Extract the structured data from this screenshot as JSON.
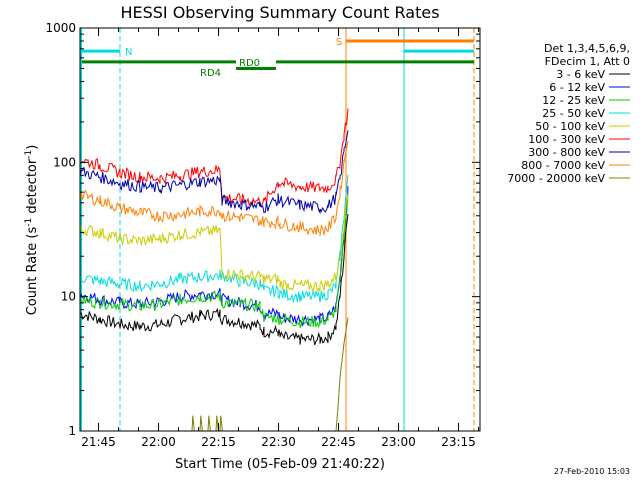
{
  "chart_data": {
    "type": "line",
    "title": "HESSI Observing Summary Count Rates",
    "xlabel": "Start Time (05-Feb-09 21:40:22)",
    "ylabel_main": "Count Rate (s",
    "ylabel_sup1": "-1",
    "ylabel_mid": " detector",
    "ylabel_sup2": "-1",
    "ylabel_end": ")",
    "x_unit": "minutes after 21:40:22",
    "xlim": [
      0,
      100
    ],
    "ylim": [
      1,
      1000
    ],
    "yscale": "log",
    "x_ticks": [
      {
        "value": 4.63,
        "label": "21:45"
      },
      {
        "value": 19.63,
        "label": "22:00"
      },
      {
        "value": 34.63,
        "label": "22:15"
      },
      {
        "value": 49.63,
        "label": "22:30"
      },
      {
        "value": 64.63,
        "label": "22:45"
      },
      {
        "value": 79.63,
        "label": "23:00"
      },
      {
        "value": 94.63,
        "label": "23:15"
      }
    ],
    "y_ticks": [
      {
        "value": 1,
        "label": "1"
      },
      {
        "value": 10,
        "label": "10"
      },
      {
        "value": 100,
        "label": "100"
      },
      {
        "value": 1000,
        "label": "1000"
      }
    ],
    "legend_header": [
      "Det 1,3,4,5,6,9,",
      "FDecim 1, Att 0"
    ],
    "legend_position": "right",
    "series": [
      {
        "name": "3 - 6 keV",
        "color": "#000000",
        "points": [
          [
            0,
            7.5
          ],
          [
            5,
            6.8
          ],
          [
            10,
            6.2
          ],
          [
            15,
            6.0
          ],
          [
            20,
            6.2
          ],
          [
            25,
            6.8
          ],
          [
            30,
            7.2
          ],
          [
            35,
            7.5
          ],
          [
            35.5,
            6.8
          ],
          [
            40,
            6.5
          ],
          [
            45,
            6.0
          ],
          [
            46,
            5.5
          ],
          [
            49.5,
            5.5
          ],
          [
            50,
            5.0
          ],
          [
            55,
            4.8
          ],
          [
            60,
            4.8
          ],
          [
            62,
            5.0
          ],
          [
            64,
            6.0
          ],
          [
            65,
            10.0
          ],
          [
            66,
            20.0
          ],
          [
            67,
            45.0
          ]
        ]
      },
      {
        "name": "6 - 12 keV",
        "color": "#0000ff",
        "points": [
          [
            0,
            10.5
          ],
          [
            5,
            9.5
          ],
          [
            10,
            9.0
          ],
          [
            15,
            8.8
          ],
          [
            20,
            9.2
          ],
          [
            25,
            10.0
          ],
          [
            30,
            10.5
          ],
          [
            35,
            10.5
          ],
          [
            35.5,
            9.5
          ],
          [
            40,
            9.0
          ],
          [
            45,
            8.5
          ],
          [
            46,
            7.5
          ],
          [
            49.5,
            7.5
          ],
          [
            50,
            7.0
          ],
          [
            55,
            6.8
          ],
          [
            60,
            6.8
          ],
          [
            62,
            7.0
          ],
          [
            64,
            8.5
          ],
          [
            65,
            14.0
          ],
          [
            66,
            30.0
          ],
          [
            67,
            60.0
          ]
        ]
      },
      {
        "name": "12 - 25 keV",
        "color": "#00cc00",
        "points": [
          [
            0,
            9.5
          ],
          [
            5,
            9.0
          ],
          [
            10,
            8.8
          ],
          [
            15,
            8.5
          ],
          [
            20,
            8.8
          ],
          [
            25,
            9.5
          ],
          [
            30,
            10.0
          ],
          [
            35,
            10.0
          ],
          [
            35.5,
            9.0
          ],
          [
            40,
            8.8
          ],
          [
            45,
            8.5
          ],
          [
            46,
            7.0
          ],
          [
            49.5,
            7.0
          ],
          [
            50,
            6.8
          ],
          [
            55,
            6.5
          ],
          [
            60,
            6.5
          ],
          [
            62,
            6.8
          ],
          [
            64,
            8.0
          ],
          [
            65,
            13.0
          ],
          [
            66,
            28.0
          ],
          [
            67,
            55.0
          ]
        ]
      },
      {
        "name": "25 - 50 keV",
        "color": "#00dddd",
        "points": [
          [
            0,
            14.0
          ],
          [
            5,
            13.0
          ],
          [
            10,
            12.5
          ],
          [
            15,
            12.0
          ],
          [
            20,
            12.5
          ],
          [
            25,
            13.5
          ],
          [
            30,
            14.0
          ],
          [
            35,
            14.5
          ],
          [
            35.5,
            14.5
          ],
          [
            40,
            13.0
          ],
          [
            45,
            12.5
          ],
          [
            46,
            11.0
          ],
          [
            49.5,
            11.0
          ],
          [
            50,
            10.5
          ],
          [
            55,
            10.0
          ],
          [
            60,
            10.0
          ],
          [
            62,
            10.5
          ],
          [
            64,
            12.0
          ],
          [
            65,
            20.0
          ],
          [
            66,
            40.0
          ],
          [
            67,
            80.0
          ]
        ]
      },
      {
        "name": "50 - 100 keV",
        "color": "#cccc00",
        "points": [
          [
            0,
            32.0
          ],
          [
            5,
            30.0
          ],
          [
            10,
            27.0
          ],
          [
            15,
            26.0
          ],
          [
            20,
            27.0
          ],
          [
            25,
            29.0
          ],
          [
            30,
            30.0
          ],
          [
            35,
            31.0
          ],
          [
            35.5,
            15.0
          ],
          [
            40,
            14.5
          ],
          [
            45,
            14.0
          ],
          [
            46,
            13.5
          ],
          [
            49.5,
            13.5
          ],
          [
            50,
            12.5
          ],
          [
            55,
            12.0
          ],
          [
            60,
            12.0
          ],
          [
            62,
            12.5
          ],
          [
            64,
            14.0
          ],
          [
            65,
            20.0
          ],
          [
            66,
            35.0
          ],
          [
            67,
            60.0
          ]
        ]
      },
      {
        "name": "100 - 300 keV",
        "color": "#ff0000",
        "points": [
          [
            0,
            105.0
          ],
          [
            5,
            95.0
          ],
          [
            10,
            84.0
          ],
          [
            15,
            78.0
          ],
          [
            20,
            76.0
          ],
          [
            25,
            80.0
          ],
          [
            30,
            85.0
          ],
          [
            35,
            88.0
          ],
          [
            35.5,
            55.0
          ],
          [
            40,
            53.0
          ],
          [
            45,
            51.0
          ],
          [
            46,
            50.0
          ],
          [
            49.5,
            70.0
          ],
          [
            50,
            70.0
          ],
          [
            55,
            66.0
          ],
          [
            60,
            64.0
          ],
          [
            62,
            65.0
          ],
          [
            64,
            75.0
          ],
          [
            65,
            100.0
          ],
          [
            66,
            160.0
          ],
          [
            67,
            240.0
          ]
        ]
      },
      {
        "name": "300 - 800 keV",
        "color": "#0000aa",
        "points": [
          [
            0,
            86.0
          ],
          [
            5,
            78.0
          ],
          [
            10,
            70.0
          ],
          [
            15,
            66.0
          ],
          [
            20,
            64.0
          ],
          [
            25,
            68.0
          ],
          [
            30,
            72.0
          ],
          [
            35,
            74.0
          ],
          [
            35.5,
            52.0
          ],
          [
            40,
            49.0
          ],
          [
            45,
            47.0
          ],
          [
            46,
            46.0
          ],
          [
            49.5,
            53.0
          ],
          [
            50,
            52.0
          ],
          [
            55,
            48.0
          ],
          [
            60,
            46.0
          ],
          [
            62,
            47.0
          ],
          [
            64,
            55.0
          ],
          [
            65,
            75.0
          ],
          [
            66,
            120.0
          ],
          [
            67,
            180.0
          ]
        ]
      },
      {
        "name": "800 - 7000 keV",
        "color": "#ff8000",
        "points": [
          [
            0,
            57.0
          ],
          [
            5,
            52.0
          ],
          [
            10,
            46.0
          ],
          [
            15,
            42.0
          ],
          [
            20,
            40.0
          ],
          [
            25,
            41.0
          ],
          [
            30,
            43.0
          ],
          [
            35,
            44.0
          ],
          [
            35.5,
            40.0
          ],
          [
            40,
            39.0
          ],
          [
            45,
            37.0
          ],
          [
            46,
            36.0
          ],
          [
            49.5,
            36.0
          ],
          [
            50,
            35.0
          ],
          [
            55,
            33.0
          ],
          [
            60,
            31.0
          ],
          [
            62,
            32.0
          ],
          [
            64,
            40.0
          ],
          [
            65,
            60.0
          ],
          [
            66,
            100.0
          ],
          [
            67,
            160.0
          ]
        ]
      },
      {
        "name": "7000 - 20000 keV",
        "color": "#808000",
        "points": [
          [
            28,
            1.0
          ],
          [
            28.2,
            1.3
          ],
          [
            28.6,
            1.0
          ],
          [
            30,
            1.0
          ],
          [
            30.2,
            1.3
          ],
          [
            30.6,
            1.0
          ],
          [
            32,
            1.0
          ],
          [
            32.2,
            1.3
          ],
          [
            32.6,
            1.0
          ],
          [
            34,
            1.0
          ],
          [
            34.2,
            1.3
          ],
          [
            34.6,
            1.0
          ],
          [
            35,
            1.0
          ],
          [
            35.2,
            1.3
          ],
          [
            35.6,
            1.0
          ],
          [
            64,
            1.0
          ],
          [
            64.5,
            1.5
          ],
          [
            65,
            2.5
          ],
          [
            66,
            4.5
          ],
          [
            67,
            7.0
          ]
        ]
      }
    ],
    "annotations": {
      "night": {
        "label": "N",
        "color": "#00dddd",
        "value": 1000,
        "intervals": [
          [
            0,
            10
          ]
        ],
        "end_value": 10,
        "bars_right": [
          [
            81,
            98.5
          ]
        ]
      },
      "saa": {
        "label": "S",
        "color": "#ff8000",
        "start": 66.5,
        "end": 98.5
      },
      "rd0": {
        "label": "RD0",
        "color": "#008000"
      },
      "rd4": {
        "label": "RD4",
        "color": "#008000"
      }
    },
    "timestamp": "27-Feb-2010 15:03"
  }
}
